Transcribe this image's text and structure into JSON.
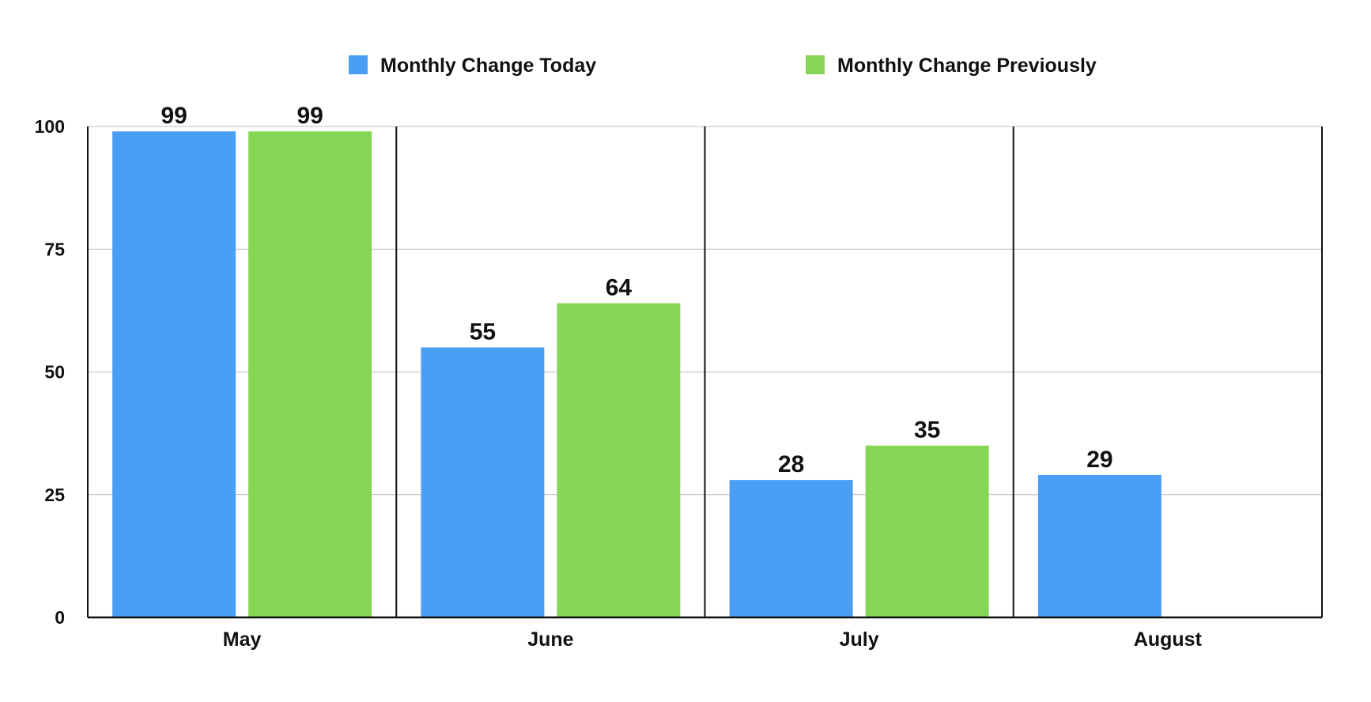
{
  "chart_data": {
    "type": "bar",
    "categories": [
      "May",
      "June",
      "July",
      "August"
    ],
    "series": [
      {
        "name": "Monthly Change Today",
        "color": "#4a9ff5",
        "values": [
          99,
          55,
          28,
          29
        ]
      },
      {
        "name": "Monthly Change Previously",
        "color": "#84d654",
        "values": [
          99,
          64,
          35,
          null
        ]
      }
    ],
    "ylim": [
      0,
      100
    ],
    "yticks": [
      0,
      25,
      50,
      75,
      100
    ],
    "grid": true,
    "legend_position": "top",
    "data_labels": true
  }
}
